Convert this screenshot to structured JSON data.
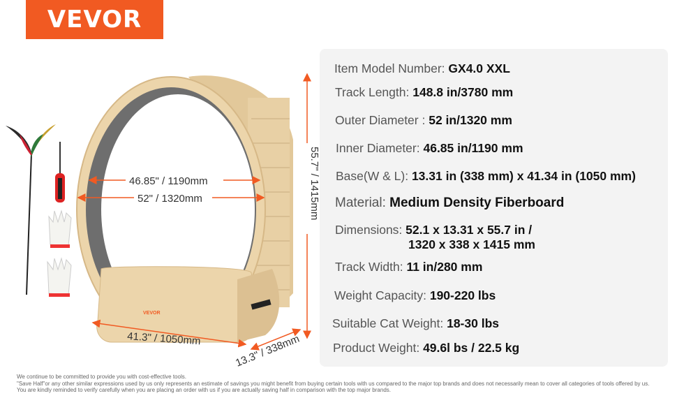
{
  "brand": {
    "logo": "VEVOR",
    "color": "#f15a22"
  },
  "diagram": {
    "inner_diameter": "46.85\" / 1190mm",
    "outer_diameter": "52\" / 1320mm",
    "height": "55.7\" / 1415mm",
    "length": "41.3\" / 1050mm",
    "width": "13.3\" / 338mm",
    "base_logo": "VEVOR",
    "accent": "#f15a22"
  },
  "specs": [
    {
      "label": "Item Model Number:",
      "value": "GX4.0 XXL"
    },
    {
      "label": "Track Length:",
      "value": "148.8 in/3780 mm"
    },
    {
      "label": "Outer Diameter :",
      "value": "52 in/1320 mm"
    },
    {
      "label": "Inner Diameter:",
      "value": "46.85 in/1190 mm"
    },
    {
      "label": "Base(W & L):",
      "value": "13.31 in (338 mm) x 41.34 in (1050 mm)"
    },
    {
      "label": "Material:",
      "value": "Medium Density Fiberboard"
    },
    {
      "label": "Dimensions:",
      "value": "52.1 x 13.31 x 55.7 in /",
      "value2": "1320 x 338 x 1415 mm"
    },
    {
      "label": "Track Width:",
      "value": "11 in/280 mm"
    },
    {
      "label": "Weight Capacity:",
      "value": "190-220 lbs"
    },
    {
      "label": "Suitable Cat Weight:",
      "value": "18-30 lbs"
    },
    {
      "label": "Product Weight:",
      "value": "49.6l bs / 22.5 kg"
    }
  ],
  "footer": [
    "We continue to be committed to provide you with cost-effective tools.",
    "\"Save Half\"or any other similar expressions used by us only represents an estimate of savings you might benefit from buying certain tools with us compared to the major top brands and does not necessarily mean to cover all categories of tools offered by us.",
    "You are kindly reminded to verify carefully when you are placing an order with us if you are actually saving half in comparison with the top major brands."
  ]
}
